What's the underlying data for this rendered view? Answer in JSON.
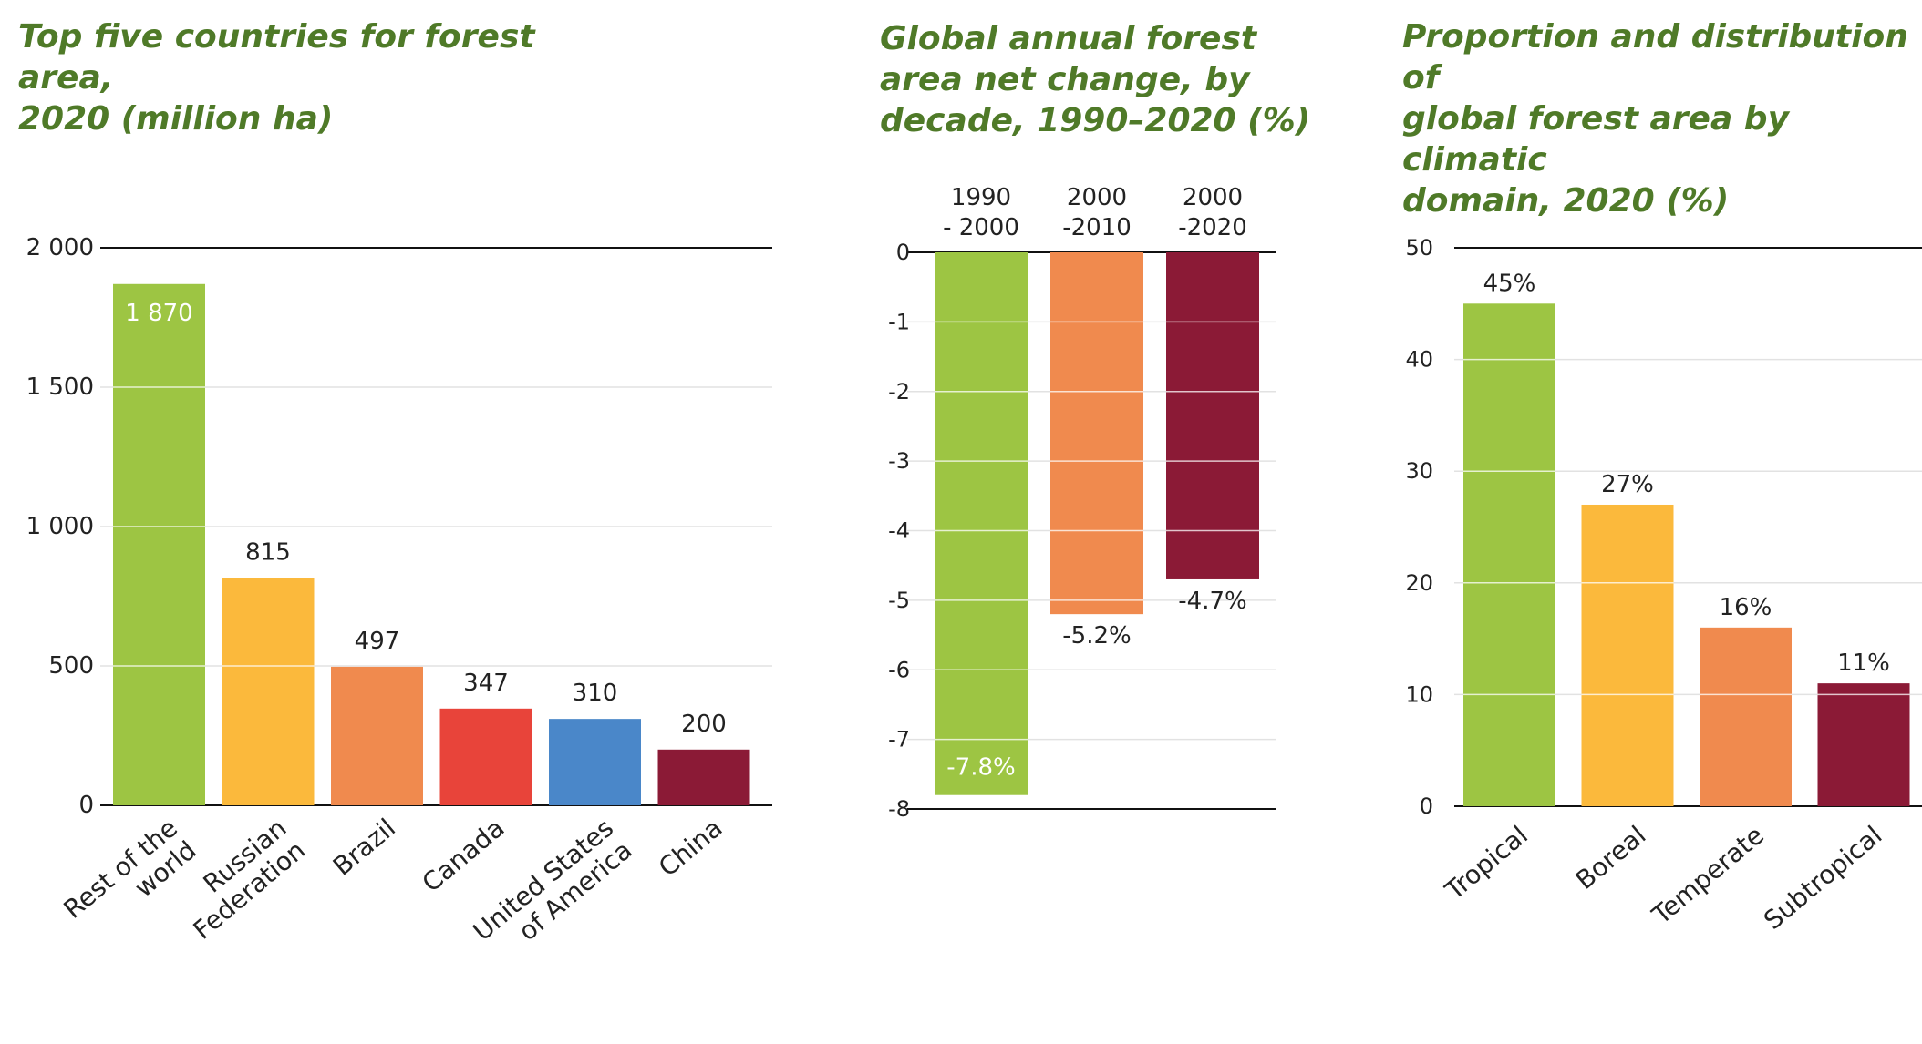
{
  "chart_data": [
    {
      "type": "bar",
      "title": "Top five countries for forest area,\n2020 (million ha)",
      "xlabel": "",
      "ylabel": "",
      "ylim": [
        0,
        2000
      ],
      "yticks": [
        0,
        500,
        1000,
        1500,
        2000
      ],
      "ytick_labels": [
        "0",
        "500",
        "1 000",
        "1 500",
        "2 000"
      ],
      "categories": [
        "Rest of the\nworld",
        "Russian\nFederation",
        "Brazil",
        "Canada",
        "United States\nof America",
        "China"
      ],
      "values": [
        1870,
        815,
        497,
        347,
        310,
        200
      ],
      "value_labels": [
        "1 870",
        "815",
        "497",
        "347",
        "310",
        "200"
      ],
      "colors": [
        "#9dc543",
        "#fbb93c",
        "#f08a4e",
        "#e8443a",
        "#4a87c9",
        "#8b1a36"
      ]
    },
    {
      "type": "bar",
      "title": "Global annual forest\narea net change, by\ndecade, 1990–2020 (%)",
      "xlabel": "",
      "ylabel": "",
      "ylim": [
        -8,
        0
      ],
      "yticks": [
        0,
        -1,
        -2,
        -3,
        -4,
        -5,
        -6,
        -7,
        -8
      ],
      "ytick_labels": [
        "0",
        "-1",
        "-2",
        "-3",
        "-4",
        "-5",
        "-6",
        "-7",
        "-8"
      ],
      "categories": [
        "1990\n- 2000",
        "2000\n-2010",
        "2000\n-2020"
      ],
      "values": [
        -7.8,
        -5.2,
        -4.7
      ],
      "value_labels": [
        "-7.8%",
        "-5.2%",
        "-4.7%"
      ],
      "colors": [
        "#9dc543",
        "#f08a4e",
        "#8b1a36"
      ]
    },
    {
      "type": "bar",
      "title": "Proportion and distribution of\nglobal forest area by climatic\ndomain, 2020  (%)",
      "xlabel": "",
      "ylabel": "",
      "ylim": [
        0,
        50
      ],
      "yticks": [
        0,
        10,
        20,
        30,
        40,
        50
      ],
      "ytick_labels": [
        "0",
        "10",
        "20",
        "30",
        "40",
        "50"
      ],
      "categories": [
        "Tropical",
        "Boreal",
        "Temperate",
        "Subtropical"
      ],
      "values": [
        45,
        27,
        16,
        11
      ],
      "value_labels": [
        "45%",
        "27%",
        "16%",
        "11%"
      ],
      "colors": [
        "#9dc543",
        "#fbb93c",
        "#f08a4e",
        "#8b1a36"
      ]
    }
  ]
}
